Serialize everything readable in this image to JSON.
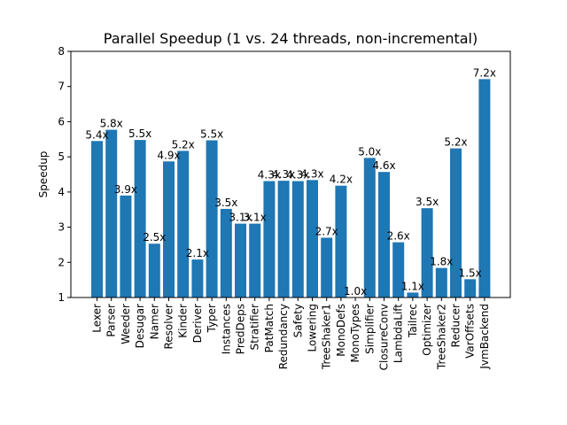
{
  "chart_data": {
    "type": "bar",
    "title": "Parallel Speedup (1 vs. 24 threads, non-incremental)",
    "xlabel": "",
    "ylabel": "Speedup",
    "ylim": [
      1,
      8
    ],
    "yticks": [
      1,
      2,
      3,
      4,
      5,
      6,
      7,
      8
    ],
    "grid": false,
    "bar_color": "#1f77b4",
    "categories": [
      "Lexer",
      "Parser",
      "Weeder",
      "Desugar",
      "Namer",
      "Resolver",
      "Kinder",
      "Deriver",
      "Typer",
      "Instances",
      "PredDeps",
      "Stratifier",
      "PatMatch",
      "Redundancy",
      "Safety",
      "Lowering",
      "TreeShaker1",
      "MonoDefs",
      "MonoTypes",
      "Simplifier",
      "ClosureConv",
      "LambdaLift",
      "Tailrec",
      "Optimizer",
      "TreeShaker2",
      "Reducer",
      "VarOffsets",
      "JvmBackend"
    ],
    "values": [
      5.45,
      5.77,
      3.9,
      5.48,
      2.53,
      4.87,
      5.17,
      2.08,
      5.47,
      3.52,
      3.1,
      3.1,
      4.31,
      4.32,
      4.31,
      4.34,
      2.7,
      4.18,
      1.0,
      4.97,
      4.57,
      2.57,
      1.14,
      3.54,
      1.84,
      5.24,
      1.52,
      7.21
    ],
    "labels": [
      "5.4x",
      "5.8x",
      "3.9x",
      "5.5x",
      "2.5x",
      "4.9x",
      "5.2x",
      "2.1x",
      "5.5x",
      "3.5x",
      "3.1x",
      "3.1x",
      "4.3x",
      "4.3x",
      "4.3x",
      "4.3x",
      "2.7x",
      "4.2x",
      "1.0x",
      "5.0x",
      "4.6x",
      "2.6x",
      "1.1x",
      "3.5x",
      "1.8x",
      "5.2x",
      "1.5x",
      "7.2x"
    ]
  }
}
